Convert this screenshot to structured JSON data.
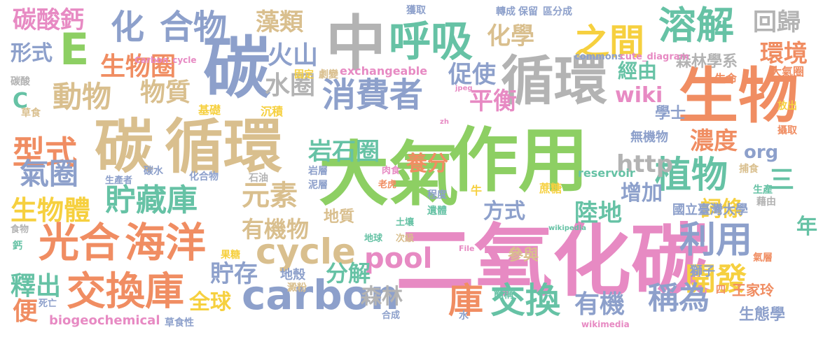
{
  "palette": {
    "green": "#8dcf63",
    "teal": "#66c2a5",
    "orange": "#f08d62",
    "blue": "#8da0cb",
    "pink": "#e78ac3",
    "tan": "#d9bf8e",
    "yellow": "#f6d03f",
    "gray": "#b3b3b3"
  },
  "words": [
    {
      "text": "二氧化碳",
      "color": "pink"
    },
    {
      "text": "大氣",
      "color": "green"
    },
    {
      "text": "作用",
      "color": "green"
    },
    {
      "text": "碳",
      "color": "blue"
    },
    {
      "text": "中",
      "color": "gray"
    },
    {
      "text": "呼吸",
      "color": "teal"
    },
    {
      "text": "生物",
      "color": "orange"
    },
    {
      "text": "循環",
      "color": "gray"
    },
    {
      "text": "碳",
      "color": "tan"
    },
    {
      "text": "循環",
      "color": "tan"
    },
    {
      "text": "光合",
      "color": "orange"
    },
    {
      "text": "海洋",
      "color": "orange"
    },
    {
      "text": "交換庫",
      "color": "orange"
    },
    {
      "text": "carbon",
      "color": "blue"
    },
    {
      "text": "cycle",
      "color": "tan"
    },
    {
      "text": "pool",
      "color": "pink"
    },
    {
      "text": "溶解",
      "color": "teal"
    },
    {
      "text": "植物",
      "color": "teal"
    },
    {
      "text": "消費者",
      "color": "blue"
    },
    {
      "text": "之間",
      "color": "yellow"
    },
    {
      "text": "合物",
      "color": "blue"
    },
    {
      "text": "化",
      "color": "blue"
    },
    {
      "text": "E",
      "color": "green"
    },
    {
      "text": "生物圈",
      "color": "orange"
    },
    {
      "text": "動物",
      "color": "tan"
    },
    {
      "text": "型式",
      "color": "orange"
    },
    {
      "text": "氣圈",
      "color": "blue"
    },
    {
      "text": "生物體",
      "color": "yellow"
    },
    {
      "text": "貯藏庫",
      "color": "teal"
    },
    {
      "text": "元素",
      "color": "tan"
    },
    {
      "text": "岩石圈",
      "color": "teal"
    },
    {
      "text": "利用",
      "color": "blue"
    },
    {
      "text": "交換",
      "color": "teal"
    },
    {
      "text": "開發",
      "color": "yellow"
    },
    {
      "text": "稱為",
      "color": "blue"
    },
    {
      "text": "庫",
      "color": "orange"
    },
    {
      "text": "碳酸鈣",
      "color": "pink"
    },
    {
      "text": "藻類",
      "color": "tan"
    },
    {
      "text": "回歸",
      "color": "gray"
    },
    {
      "text": "化學",
      "color": "tan"
    },
    {
      "text": "環境",
      "color": "orange"
    },
    {
      "text": "形式",
      "color": "blue"
    },
    {
      "text": "火山",
      "color": "blue"
    },
    {
      "text": "水圈",
      "color": "gray"
    },
    {
      "text": "物質",
      "color": "tan"
    },
    {
      "text": "促使",
      "color": "blue"
    },
    {
      "text": "平衡",
      "color": "pink"
    },
    {
      "text": "wiki",
      "color": "pink"
    },
    {
      "text": "森林學系",
      "color": "gray"
    },
    {
      "text": "經由",
      "color": "teal"
    },
    {
      "text": "大氣圈",
      "color": "orange"
    },
    {
      "text": "生命",
      "color": "orange"
    },
    {
      "text": "濃度",
      "color": "orange"
    },
    {
      "text": "org",
      "color": "blue"
    },
    {
      "text": "http",
      "color": "gray"
    },
    {
      "text": "養分",
      "color": "orange"
    },
    {
      "text": "增加",
      "color": "blue"
    },
    {
      "text": "學士",
      "color": "blue"
    },
    {
      "text": "陸地",
      "color": "teal"
    },
    {
      "text": "詞條",
      "color": "yellow"
    },
    {
      "text": "國立臺灣大學",
      "color": "blue"
    },
    {
      "text": "年",
      "color": "teal"
    },
    {
      "text": "有機物",
      "color": "tan"
    },
    {
      "text": "方式",
      "color": "blue"
    },
    {
      "text": "貯存",
      "color": "blue"
    },
    {
      "text": "分解",
      "color": "teal"
    },
    {
      "text": "地質",
      "color": "tan"
    },
    {
      "text": "參與",
      "color": "tan"
    },
    {
      "text": "釋出",
      "color": "teal"
    },
    {
      "text": "便",
      "color": "orange"
    },
    {
      "text": "全球",
      "color": "yellow"
    },
    {
      "text": "森林",
      "color": "gray"
    },
    {
      "text": "有機",
      "color": "blue"
    },
    {
      "text": "生態學",
      "color": "blue"
    },
    {
      "text": "王家玲",
      "color": "orange"
    },
    {
      "text": "biogeochemical",
      "color": "pink"
    },
    {
      "text": "reservoir",
      "color": "teal"
    },
    {
      "text": "exchangeable",
      "color": "pink"
    },
    {
      "text": "commons",
      "color": "blue"
    },
    {
      "text": "cute_diagram",
      "color": "pink"
    },
    {
      "text": "Carbon_cycle",
      "color": "pink"
    },
    {
      "text": "無機物",
      "color": "blue"
    },
    {
      "text": "獅子",
      "color": "blue"
    },
    {
      "text": "地殼",
      "color": "blue"
    },
    {
      "text": "沉積",
      "color": "yellow"
    },
    {
      "text": "基礎",
      "color": "yellow"
    },
    {
      "text": "固定",
      "color": "yellow"
    },
    {
      "text": "劇變",
      "color": "tan"
    },
    {
      "text": "碳酸",
      "color": "gray"
    },
    {
      "text": "C",
      "color": "teal"
    },
    {
      "text": "草食",
      "color": "tan"
    },
    {
      "text": "獲取",
      "color": "blue"
    },
    {
      "text": "保留",
      "color": "blue"
    },
    {
      "text": "轉成",
      "color": "blue"
    },
    {
      "text": "區分成",
      "color": "blue"
    },
    {
      "text": "氣層",
      "color": "orange"
    },
    {
      "text": "生產",
      "color": "teal"
    },
    {
      "text": "藉由",
      "color": "gray"
    },
    {
      "text": "攝取",
      "color": "orange"
    },
    {
      "text": "捕食",
      "color": "tan"
    },
    {
      "text": "放出",
      "color": "yellow"
    },
    {
      "text": "食物",
      "color": "gray"
    },
    {
      "text": "鈣",
      "color": "teal"
    },
    {
      "text": "化合物",
      "color": "blue"
    },
    {
      "text": "石油",
      "color": "gray"
    },
    {
      "text": "碳水",
      "color": "blue"
    },
    {
      "text": "生產者",
      "color": "blue"
    },
    {
      "text": "岩層",
      "color": "blue"
    },
    {
      "text": "泥層",
      "color": "blue"
    },
    {
      "text": "程度",
      "color": "blue"
    },
    {
      "text": "遺體",
      "color": "teal"
    },
    {
      "text": "老虎",
      "color": "orange"
    },
    {
      "text": "肉食",
      "color": "pink"
    },
    {
      "text": "牛",
      "color": "yellow"
    },
    {
      "text": "蔗糖",
      "color": "yellow"
    },
    {
      "text": "地球",
      "color": "teal"
    },
    {
      "text": "次級",
      "color": "tan"
    },
    {
      "text": "土壤",
      "color": "teal"
    },
    {
      "text": "果糖",
      "color": "yellow"
    },
    {
      "text": "澱粉",
      "color": "tan"
    },
    {
      "text": "合成",
      "color": "blue"
    },
    {
      "text": "水",
      "color": "blue"
    },
    {
      "text": "簡稱",
      "color": "teal"
    },
    {
      "text": "四",
      "color": "orange"
    },
    {
      "text": "死亡",
      "color": "blue"
    },
    {
      "text": "草食性",
      "color": "blue"
    },
    {
      "text": "wikimedia",
      "color": "pink"
    },
    {
      "text": "wikipedia",
      "color": "teal"
    },
    {
      "text": "File",
      "color": "pink"
    },
    {
      "text": "jpeg",
      "color": "pink"
    },
    {
      "text": "zh",
      "color": "pink"
    },
    {
      "text": "三",
      "color": "teal"
    }
  ]
}
